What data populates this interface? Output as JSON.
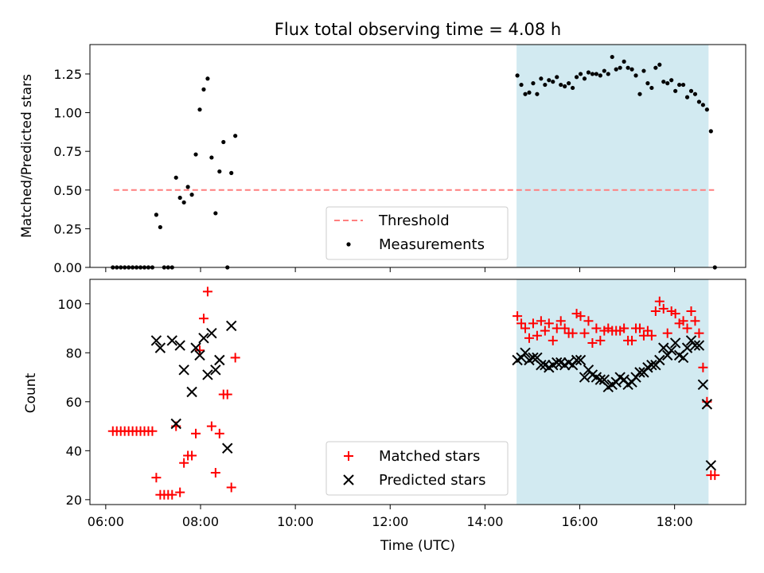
{
  "title": "Flux total observing time = 4.08 h",
  "colors": {
    "threshold": "#ff7f7f",
    "highlight": "#add8e6",
    "matched": "#ff0000",
    "predicted": "#000000"
  },
  "chart_data": [
    {
      "type": "scatter",
      "title": "Flux total observing time = 4.08 h",
      "ylabel": "Matched/Predicted stars",
      "xlabel": "",
      "xlim": [
        "05:40",
        "19:30"
      ],
      "ylim": [
        0,
        1.44
      ],
      "yticks": [
        "0.00",
        "0.25",
        "0.50",
        "0.75",
        "1.00",
        "1.25"
      ],
      "legend": {
        "placement": "lower-center",
        "entries": [
          "Threshold",
          "Measurements"
        ]
      },
      "highlight_span": [
        "14:40",
        "18:43"
      ],
      "threshold": {
        "name": "Threshold",
        "y": 0.5,
        "x_range": [
          "06:10",
          "18:50"
        ]
      },
      "series": [
        {
          "name": "Measurements",
          "points": [
            [
              "06:09",
              0
            ],
            [
              "06:14",
              0
            ],
            [
              "06:19",
              0
            ],
            [
              "06:24",
              0
            ],
            [
              "06:29",
              0
            ],
            [
              "06:34",
              0
            ],
            [
              "06:39",
              0
            ],
            [
              "06:44",
              0
            ],
            [
              "06:49",
              0
            ],
            [
              "06:54",
              0
            ],
            [
              "06:59",
              0
            ],
            [
              "07:04",
              0.34
            ],
            [
              "07:09",
              0.26
            ],
            [
              "07:14",
              0
            ],
            [
              "07:19",
              0
            ],
            [
              "07:24",
              0
            ],
            [
              "07:29",
              0.58
            ],
            [
              "07:34",
              0.45
            ],
            [
              "07:39",
              0.42
            ],
            [
              "07:44",
              0.52
            ],
            [
              "07:49",
              0.47
            ],
            [
              "07:54",
              0.73
            ],
            [
              "07:59",
              1.02
            ],
            [
              "08:04",
              1.15
            ],
            [
              "08:09",
              1.22
            ],
            [
              "08:14",
              0.71
            ],
            [
              "08:19",
              0.35
            ],
            [
              "08:24",
              0.62
            ],
            [
              "08:29",
              0.81
            ],
            [
              "08:34",
              0
            ],
            [
              "08:39",
              0.61
            ],
            [
              "08:44",
              0.85
            ],
            [
              "14:41",
              1.24
            ],
            [
              "14:46",
              1.18
            ],
            [
              "14:51",
              1.12
            ],
            [
              "14:56",
              1.13
            ],
            [
              "15:01",
              1.19
            ],
            [
              "15:06",
              1.12
            ],
            [
              "15:11",
              1.22
            ],
            [
              "15:16",
              1.18
            ],
            [
              "15:21",
              1.21
            ],
            [
              "15:26",
              1.2
            ],
            [
              "15:31",
              1.23
            ],
            [
              "15:36",
              1.18
            ],
            [
              "15:41",
              1.17
            ],
            [
              "15:46",
              1.19
            ],
            [
              "15:51",
              1.16
            ],
            [
              "15:56",
              1.23
            ],
            [
              "16:01",
              1.25
            ],
            [
              "16:06",
              1.22
            ],
            [
              "16:11",
              1.26
            ],
            [
              "16:16",
              1.25
            ],
            [
              "16:21",
              1.25
            ],
            [
              "16:26",
              1.24
            ],
            [
              "16:31",
              1.27
            ],
            [
              "16:36",
              1.25
            ],
            [
              "16:41",
              1.36
            ],
            [
              "16:46",
              1.28
            ],
            [
              "16:51",
              1.29
            ],
            [
              "16:56",
              1.33
            ],
            [
              "17:01",
              1.29
            ],
            [
              "17:06",
              1.28
            ],
            [
              "17:11",
              1.24
            ],
            [
              "17:16",
              1.12
            ],
            [
              "17:21",
              1.27
            ],
            [
              "17:26",
              1.19
            ],
            [
              "17:31",
              1.16
            ],
            [
              "17:36",
              1.29
            ],
            [
              "17:41",
              1.31
            ],
            [
              "17:46",
              1.2
            ],
            [
              "17:51",
              1.19
            ],
            [
              "17:56",
              1.21
            ],
            [
              "18:01",
              1.14
            ],
            [
              "18:06",
              1.18
            ],
            [
              "18:11",
              1.18
            ],
            [
              "18:16",
              1.1
            ],
            [
              "18:21",
              1.14
            ],
            [
              "18:26",
              1.12
            ],
            [
              "18:31",
              1.07
            ],
            [
              "18:36",
              1.05
            ],
            [
              "18:41",
              1.02
            ],
            [
              "18:46",
              0.88
            ],
            [
              "18:51",
              0
            ]
          ]
        }
      ]
    },
    {
      "type": "scatter",
      "ylabel": "Count",
      "xlabel": "Time (UTC)",
      "xlim": [
        "05:40",
        "19:30"
      ],
      "ylim": [
        18,
        110
      ],
      "yticks": [
        20,
        40,
        60,
        80,
        100
      ],
      "xticks": [
        "06:00",
        "08:00",
        "10:00",
        "12:00",
        "14:00",
        "16:00",
        "18:00"
      ],
      "legend": {
        "placement": "lower-center",
        "entries": [
          "Matched stars",
          "Predicted stars"
        ]
      },
      "highlight_span": [
        "14:40",
        "18:43"
      ],
      "series": [
        {
          "name": "Matched stars",
          "marker": "plus",
          "points": [
            [
              "06:09",
              48
            ],
            [
              "06:14",
              48
            ],
            [
              "06:19",
              48
            ],
            [
              "06:24",
              48
            ],
            [
              "06:29",
              48
            ],
            [
              "06:34",
              48
            ],
            [
              "06:39",
              48
            ],
            [
              "06:44",
              48
            ],
            [
              "06:49",
              48
            ],
            [
              "06:54",
              48
            ],
            [
              "06:59",
              48
            ],
            [
              "07:04",
              29
            ],
            [
              "07:09",
              22
            ],
            [
              "07:14",
              22
            ],
            [
              "07:19",
              22
            ],
            [
              "07:24",
              22
            ],
            [
              "07:29",
              50
            ],
            [
              "07:34",
              23
            ],
            [
              "07:39",
              35
            ],
            [
              "07:44",
              38
            ],
            [
              "07:49",
              38
            ],
            [
              "07:54",
              47
            ],
            [
              "07:59",
              81
            ],
            [
              "08:04",
              94
            ],
            [
              "08:09",
              105
            ],
            [
              "08:14",
              50
            ],
            [
              "08:19",
              31
            ],
            [
              "08:24",
              47
            ],
            [
              "08:29",
              63
            ],
            [
              "08:34",
              63
            ],
            [
              "08:39",
              25
            ],
            [
              "08:44",
              78
            ],
            [
              "14:41",
              95
            ],
            [
              "14:46",
              92
            ],
            [
              "14:51",
              90
            ],
            [
              "14:56",
              86
            ],
            [
              "15:01",
              92
            ],
            [
              "15:06",
              87
            ],
            [
              "15:11",
              93
            ],
            [
              "15:16",
              89
            ],
            [
              "15:21",
              92
            ],
            [
              "15:26",
              85
            ],
            [
              "15:31",
              90
            ],
            [
              "15:36",
              93
            ],
            [
              "15:41",
              90
            ],
            [
              "15:46",
              88
            ],
            [
              "15:51",
              88
            ],
            [
              "15:56",
              96
            ],
            [
              "16:01",
              95
            ],
            [
              "16:06",
              88
            ],
            [
              "16:11",
              93
            ],
            [
              "16:16",
              84
            ],
            [
              "16:21",
              90
            ],
            [
              "16:26",
              85
            ],
            [
              "16:31",
              89
            ],
            [
              "16:36",
              90
            ],
            [
              "16:41",
              89
            ],
            [
              "16:46",
              89
            ],
            [
              "16:51",
              89
            ],
            [
              "16:56",
              90
            ],
            [
              "17:01",
              85
            ],
            [
              "17:06",
              85
            ],
            [
              "17:11",
              90
            ],
            [
              "17:16",
              90
            ],
            [
              "17:21",
              87
            ],
            [
              "17:26",
              89
            ],
            [
              "17:31",
              87
            ],
            [
              "17:36",
              97
            ],
            [
              "17:41",
              101
            ],
            [
              "17:46",
              98
            ],
            [
              "17:51",
              88
            ],
            [
              "17:56",
              97
            ],
            [
              "18:01",
              96
            ],
            [
              "18:06",
              92
            ],
            [
              "18:11",
              93
            ],
            [
              "18:16",
              90
            ],
            [
              "18:21",
              97
            ],
            [
              "18:26",
              93
            ],
            [
              "18:31",
              88
            ],
            [
              "18:36",
              74
            ],
            [
              "18:41",
              60
            ],
            [
              "18:46",
              30
            ],
            [
              "18:51",
              30
            ]
          ]
        },
        {
          "name": "Predicted stars",
          "marker": "x",
          "points": [
            [
              "07:04",
              85
            ],
            [
              "07:09",
              82
            ],
            [
              "07:24",
              85
            ],
            [
              "07:29",
              51
            ],
            [
              "07:34",
              83
            ],
            [
              "07:39",
              73
            ],
            [
              "07:49",
              64
            ],
            [
              "07:54",
              82
            ],
            [
              "07:59",
              79
            ],
            [
              "08:04",
              86
            ],
            [
              "08:09",
              71
            ],
            [
              "08:14",
              88
            ],
            [
              "08:19",
              73
            ],
            [
              "08:24",
              77
            ],
            [
              "08:34",
              41
            ],
            [
              "08:39",
              91
            ],
            [
              "14:41",
              77
            ],
            [
              "14:46",
              78
            ],
            [
              "14:51",
              80
            ],
            [
              "14:56",
              77
            ],
            [
              "15:01",
              78
            ],
            [
              "15:06",
              78
            ],
            [
              "15:11",
              75
            ],
            [
              "15:16",
              75
            ],
            [
              "15:21",
              74
            ],
            [
              "15:26",
              75
            ],
            [
              "15:31",
              76
            ],
            [
              "15:36",
              76
            ],
            [
              "15:41",
              75
            ],
            [
              "15:46",
              76
            ],
            [
              "15:51",
              75
            ],
            [
              "15:56",
              77
            ],
            [
              "16:01",
              77
            ],
            [
              "16:06",
              70
            ],
            [
              "16:11",
              73
            ],
            [
              "16:16",
              71
            ],
            [
              "16:21",
              70
            ],
            [
              "16:26",
              69
            ],
            [
              "16:31",
              69
            ],
            [
              "16:36",
              66
            ],
            [
              "16:41",
              67
            ],
            [
              "16:46",
              68
            ],
            [
              "16:51",
              70
            ],
            [
              "16:56",
              69
            ],
            [
              "17:01",
              67
            ],
            [
              "17:06",
              68
            ],
            [
              "17:11",
              70
            ],
            [
              "17:16",
              72
            ],
            [
              "17:21",
              72
            ],
            [
              "17:26",
              74
            ],
            [
              "17:31",
              75
            ],
            [
              "17:36",
              75
            ],
            [
              "17:41",
              77
            ],
            [
              "17:46",
              82
            ],
            [
              "17:51",
              79
            ],
            [
              "17:56",
              81
            ],
            [
              "18:01",
              84
            ],
            [
              "18:06",
              79
            ],
            [
              "18:11",
              78
            ],
            [
              "18:16",
              82
            ],
            [
              "18:21",
              85
            ],
            [
              "18:26",
              83
            ],
            [
              "18:31",
              83
            ],
            [
              "18:36",
              67
            ],
            [
              "18:41",
              59
            ],
            [
              "18:46",
              34
            ]
          ]
        }
      ]
    }
  ]
}
